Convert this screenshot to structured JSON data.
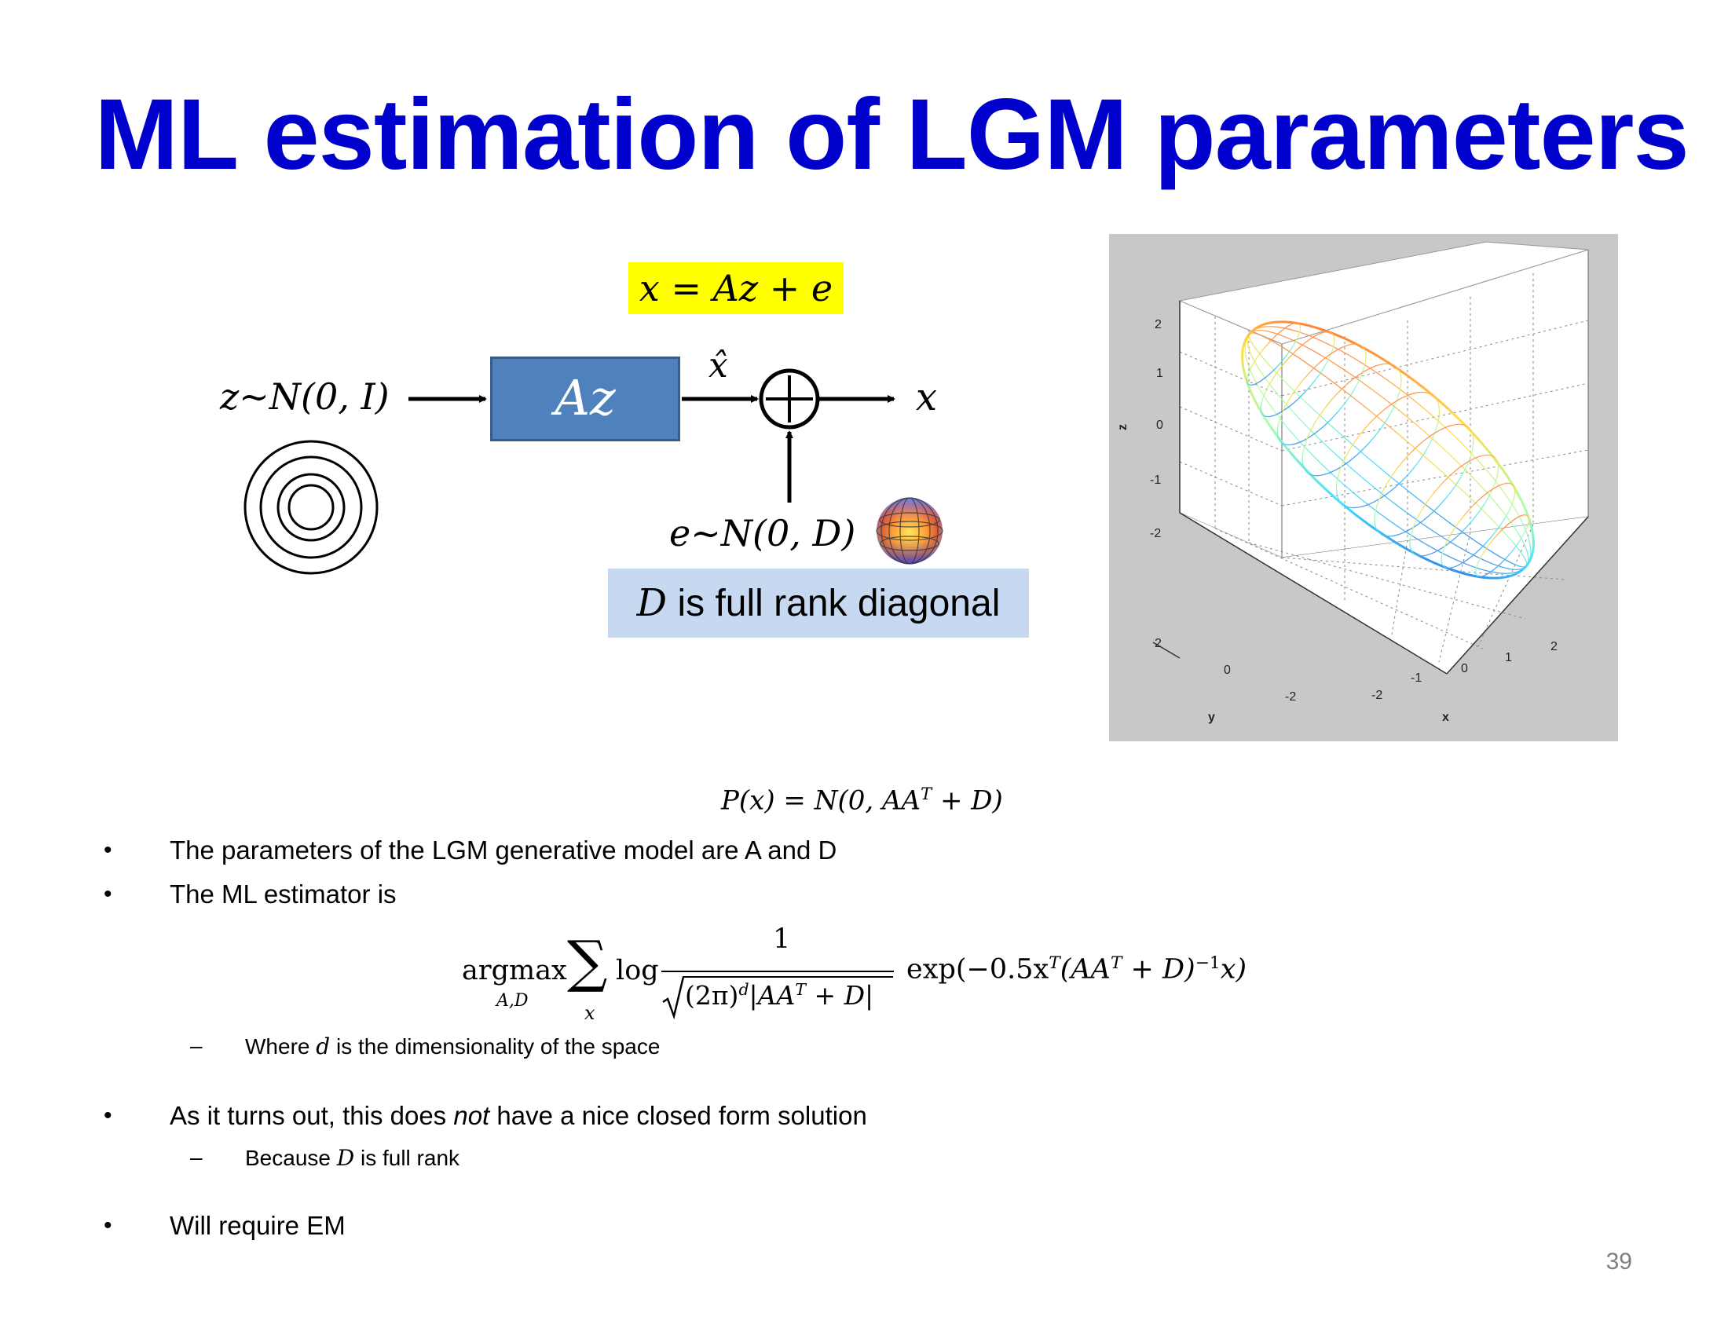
{
  "slide": {
    "title": "ML estimation of LGM parameters",
    "page_number": "39"
  },
  "diagram": {
    "model_equation": "x = Az + e",
    "latent_label": "z~N(0, I)",
    "transform_label": "Az",
    "xhat_label": "x̂",
    "output_label": "x",
    "noise_label": "e~N(0, D)",
    "noise_note_var": "D",
    "noise_note_text": " is full rank diagonal",
    "colors": {
      "box_fill": "#4f81bd",
      "highlight": "#ffff00",
      "note_fill": "#c6d9f1"
    }
  },
  "plot3d": {
    "z_ticks": [
      "2",
      "1",
      "0",
      "-1",
      "-2"
    ],
    "y_ticks": [
      "2",
      "0",
      "-2"
    ],
    "x_ticks": [
      "-2",
      "-1",
      "0",
      "1",
      "2"
    ],
    "zlabel": "z",
    "ylabel": "y",
    "xlabel": "x"
  },
  "formulas": {
    "px_lhs": "P(x)",
    "px_rhs": "= N(0, AA",
    "px_sup": "T",
    "px_end": " + D)",
    "argmax": "argmax",
    "argmax_sub": "A,D",
    "sum_symbol": "∑",
    "sum_sub": "x",
    "log": "log",
    "frac_num": "1",
    "frac_den": "(2π)",
    "frac_den_sup": "d",
    "frac_den_rest": "|AA",
    "frac_den_sup2": "T",
    "frac_den_end": " + D|",
    "exp_text": "exp(−0.5x",
    "exp_sup1": "T",
    "exp_mid": "(AA",
    "exp_sup2": "T",
    "exp_mid2": " + D)",
    "exp_sup3": "−1",
    "exp_end": "x)"
  },
  "bullets": {
    "dot": "•",
    "dash": "–",
    "b1": "The parameters of the LGM generative model are A and D",
    "b2": "The ML estimator is",
    "s1_pre": "Where ",
    "s1_var": "d",
    "s1_post": " is the dimensionality of the space",
    "b3_pre": "As it turns out, this does ",
    "b3_em": "not",
    "b3_post": " have a nice closed form solution",
    "s2_pre": "Because ",
    "s2_var": "D",
    "s2_post": " is full rank",
    "b4": "Will require EM"
  }
}
